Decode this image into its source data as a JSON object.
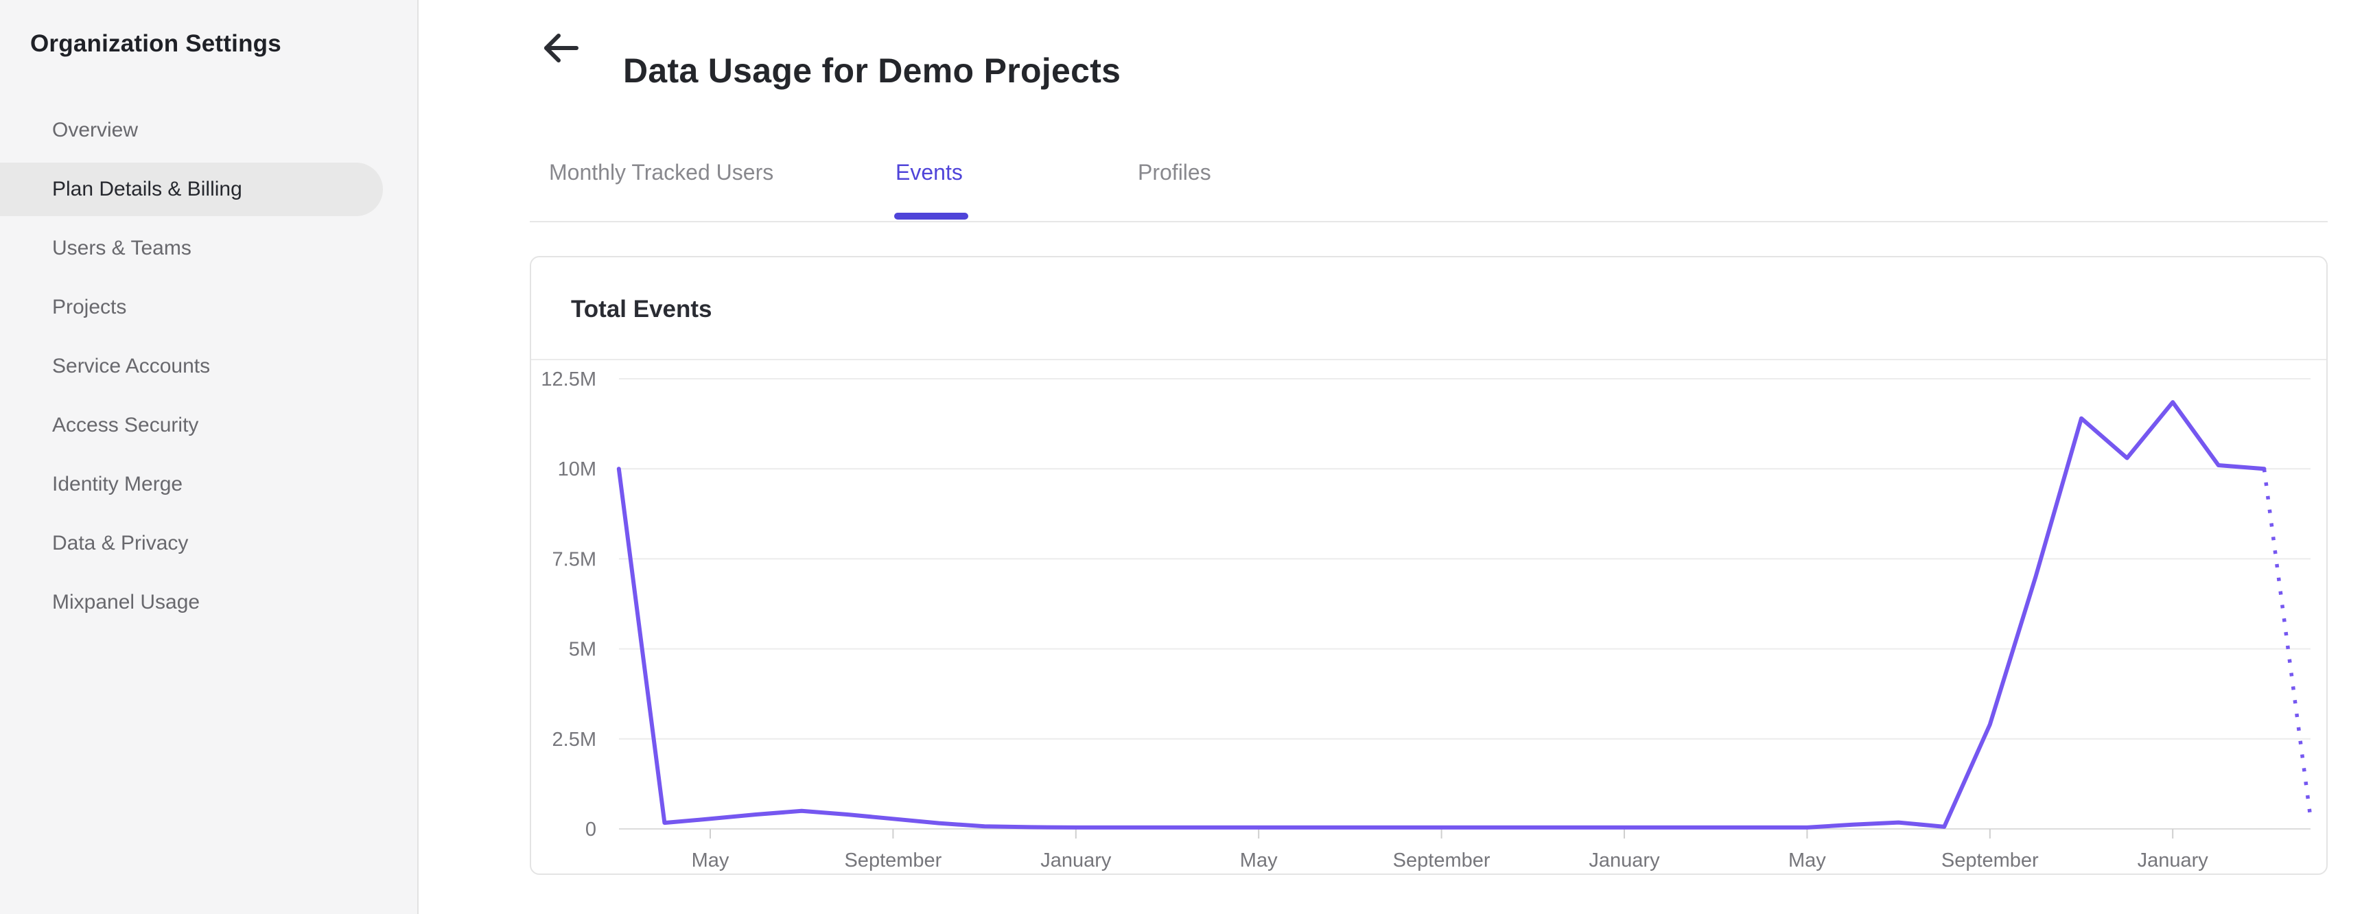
{
  "sidebar": {
    "title": "Organization Settings",
    "items": [
      {
        "label": "Overview",
        "active": false
      },
      {
        "label": "Plan Details & Billing",
        "active": true
      },
      {
        "label": "Users & Teams",
        "active": false
      },
      {
        "label": "Projects",
        "active": false
      },
      {
        "label": "Service Accounts",
        "active": false
      },
      {
        "label": "Access Security",
        "active": false
      },
      {
        "label": "Identity Merge",
        "active": false
      },
      {
        "label": "Data & Privacy",
        "active": false
      },
      {
        "label": "Mixpanel Usage",
        "active": false
      }
    ]
  },
  "header": {
    "title": "Data Usage for Demo Projects",
    "back_icon": "left-arrow"
  },
  "tabs": [
    {
      "label": "Monthly Tracked Users",
      "active": false
    },
    {
      "label": "Events",
      "active": true
    },
    {
      "label": "Profiles",
      "active": false
    }
  ],
  "card": {
    "title": "Total Events"
  },
  "colors": {
    "accent_tab": "#4f44d9",
    "chart_line": "#7557f0",
    "active_sidebar_item_bg": "#e8e8e8",
    "gridline": "#ececec",
    "axis_line": "#dcdcdc",
    "axis_text": "#76767b"
  },
  "chart_data": {
    "type": "line",
    "title": "Total Events",
    "x_unit": "month",
    "note_first_point_is_two_months_before_first_tick": true,
    "values_millions": [
      10,
      0.17,
      0.28,
      0.4,
      0.5,
      0.4,
      0.28,
      0.16,
      0.07,
      0.05,
      0.04,
      0.04,
      0.04,
      0.04,
      0.04,
      0.04,
      0.04,
      0.04,
      0.04,
      0.04,
      0.04,
      0.04,
      0.04,
      0.04,
      0.04,
      0.04,
      0.04,
      0.12,
      0.18,
      0.06,
      2.9,
      7.0,
      11.4,
      10.3,
      11.85,
      10.1,
      10.0,
      0.45
    ],
    "last_point_projected_dotted": true,
    "x_ticks": [
      {
        "month_index": 2,
        "label": "May"
      },
      {
        "month_index": 6,
        "label": "September"
      },
      {
        "month_index": 10,
        "label": "January"
      },
      {
        "month_index": 14,
        "label": "May"
      },
      {
        "month_index": 18,
        "label": "September"
      },
      {
        "month_index": 22,
        "label": "January"
      },
      {
        "month_index": 26,
        "label": "May"
      },
      {
        "month_index": 30,
        "label": "September"
      },
      {
        "month_index": 34,
        "label": "January"
      }
    ],
    "y_ticks": [
      {
        "value": 0,
        "label": "0"
      },
      {
        "value": 2.5,
        "label": "2.5M"
      },
      {
        "value": 5,
        "label": "5M"
      },
      {
        "value": 7.5,
        "label": "7.5M"
      },
      {
        "value": 10,
        "label": "10M"
      },
      {
        "value": 12.5,
        "label": "12.5M"
      }
    ],
    "ylim_millions": [
      0,
      12.5
    ],
    "grid": true,
    "legend": false
  }
}
